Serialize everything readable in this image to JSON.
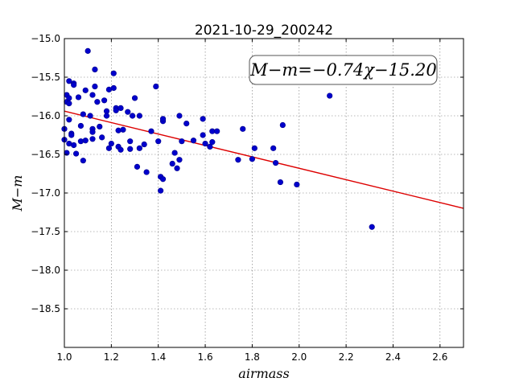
{
  "chart_data": {
    "type": "scatter",
    "title": "2021-10-29_200242",
    "xlabel": "airmass",
    "ylabel": "M−m",
    "xlim": [
      1.0,
      2.7
    ],
    "ylim": [
      -19.0,
      -15.0
    ],
    "y_inverted": true,
    "grid": true,
    "xticks": [
      "1.0",
      "1.2",
      "1.4",
      "1.6",
      "1.8",
      "2.0",
      "2.2",
      "2.4",
      "2.6"
    ],
    "yticks": [
      "−15.0",
      "−15.5",
      "−16.0",
      "−16.5",
      "−17.0",
      "−17.5",
      "−18.0",
      "−18.5"
    ],
    "annotation": "M−m=−0.74χ−15.20",
    "fit": {
      "slope": -0.74,
      "intercept": -15.2
    },
    "series": [
      {
        "marker_color": "#0000cc",
        "points": [
          [
            1.0,
            -16.17
          ],
          [
            1.0,
            -16.31
          ],
          [
            1.01,
            -16.48
          ],
          [
            1.01,
            -15.73
          ],
          [
            1.01,
            -15.82
          ],
          [
            1.02,
            -15.55
          ],
          [
            1.02,
            -15.77
          ],
          [
            1.02,
            -15.84
          ],
          [
            1.02,
            -16.05
          ],
          [
            1.02,
            -16.36
          ],
          [
            1.03,
            -16.23
          ],
          [
            1.03,
            -16.25
          ],
          [
            1.04,
            -15.58
          ],
          [
            1.04,
            -15.6
          ],
          [
            1.04,
            -16.38
          ],
          [
            1.05,
            -16.49
          ],
          [
            1.06,
            -15.76
          ],
          [
            1.07,
            -16.13
          ],
          [
            1.07,
            -16.33
          ],
          [
            1.08,
            -15.98
          ],
          [
            1.08,
            -16.58
          ],
          [
            1.09,
            -16.32
          ],
          [
            1.09,
            -15.67
          ],
          [
            1.1,
            -15.16
          ],
          [
            1.11,
            -16.0
          ],
          [
            1.12,
            -16.17
          ],
          [
            1.12,
            -16.21
          ],
          [
            1.12,
            -16.3
          ],
          [
            1.12,
            -15.73
          ],
          [
            1.13,
            -15.62
          ],
          [
            1.13,
            -15.4
          ],
          [
            1.14,
            -15.82
          ],
          [
            1.15,
            -16.14
          ],
          [
            1.16,
            -16.28
          ],
          [
            1.17,
            -15.8
          ],
          [
            1.18,
            -15.94
          ],
          [
            1.18,
            -16.0
          ],
          [
            1.19,
            -16.42
          ],
          [
            1.19,
            -15.66
          ],
          [
            1.2,
            -16.36
          ],
          [
            1.21,
            -15.64
          ],
          [
            1.21,
            -15.45
          ],
          [
            1.22,
            -15.9
          ],
          [
            1.22,
            -15.93
          ],
          [
            1.23,
            -16.19
          ],
          [
            1.23,
            -16.4
          ],
          [
            1.24,
            -16.44
          ],
          [
            1.24,
            -15.9
          ],
          [
            1.25,
            -16.18
          ],
          [
            1.27,
            -15.95
          ],
          [
            1.28,
            -16.43
          ],
          [
            1.28,
            -16.33
          ],
          [
            1.29,
            -16.0
          ],
          [
            1.3,
            -15.77
          ],
          [
            1.31,
            -16.66
          ],
          [
            1.32,
            -16.42
          ],
          [
            1.32,
            -16.0
          ],
          [
            1.34,
            -16.37
          ],
          [
            1.35,
            -16.73
          ],
          [
            1.37,
            -16.2
          ],
          [
            1.39,
            -15.62
          ],
          [
            1.4,
            -16.33
          ],
          [
            1.41,
            -16.79
          ],
          [
            1.41,
            -16.97
          ],
          [
            1.42,
            -16.07
          ],
          [
            1.42,
            -16.04
          ],
          [
            1.42,
            -16.82
          ],
          [
            1.46,
            -16.62
          ],
          [
            1.47,
            -16.48
          ],
          [
            1.48,
            -16.68
          ],
          [
            1.49,
            -16.57
          ],
          [
            1.49,
            -16.0
          ],
          [
            1.5,
            -16.33
          ],
          [
            1.52,
            -16.1
          ],
          [
            1.55,
            -16.32
          ],
          [
            1.59,
            -16.25
          ],
          [
            1.59,
            -16.04
          ],
          [
            1.6,
            -16.36
          ],
          [
            1.62,
            -16.4
          ],
          [
            1.63,
            -16.34
          ],
          [
            1.63,
            -16.2
          ],
          [
            1.65,
            -16.2
          ],
          [
            1.74,
            -16.57
          ],
          [
            1.76,
            -16.17
          ],
          [
            1.8,
            -16.56
          ],
          [
            1.81,
            -16.42
          ],
          [
            1.89,
            -16.42
          ],
          [
            1.9,
            -16.61
          ],
          [
            1.92,
            -16.86
          ],
          [
            1.93,
            -16.12
          ],
          [
            1.99,
            -16.89
          ],
          [
            2.13,
            -15.74
          ],
          [
            2.31,
            -17.44
          ]
        ]
      }
    ]
  }
}
